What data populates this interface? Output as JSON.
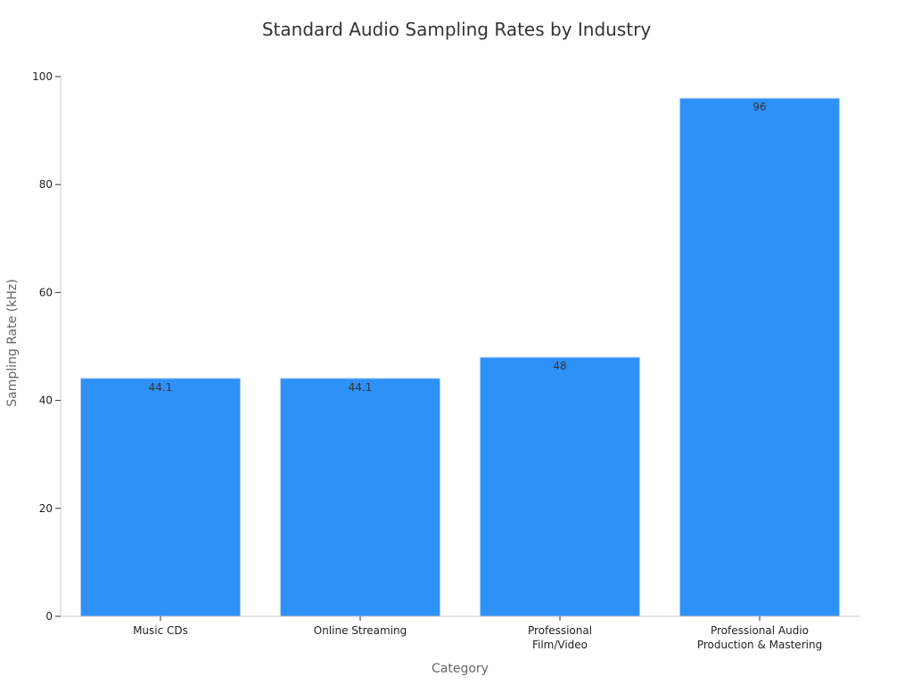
{
  "chart_data": {
    "type": "bar",
    "title": "Standard Audio Sampling Rates by Industry",
    "xlabel": "Category",
    "ylabel": "Sampling Rate (kHz)",
    "categories": [
      [
        "Music CDs"
      ],
      [
        "Online Streaming"
      ],
      [
        "Professional",
        "Film/Video"
      ],
      [
        "Professional Audio",
        "Production & Mastering"
      ]
    ],
    "values": [
      44.1,
      44.1,
      48,
      96
    ],
    "data_labels": [
      "44.1",
      "44.1",
      "48",
      "96"
    ],
    "ylim": [
      0,
      100
    ],
    "yticks": [
      0,
      20,
      40,
      60,
      80,
      100
    ],
    "grid": false,
    "legend": "none",
    "colors": {
      "bar": "#2e91f8",
      "bar_edge": "#bcd8f7",
      "axis": "#cccccc",
      "tick": "#333333"
    }
  }
}
